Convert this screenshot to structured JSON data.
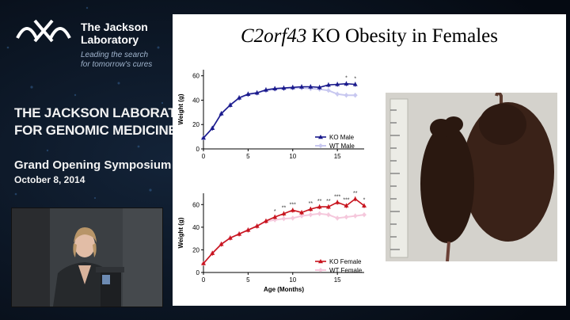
{
  "branding": {
    "org_line1": "The Jackson",
    "org_line2": "Laboratory",
    "tagline_line1": "Leading the search",
    "tagline_line2": "for tomorrow's cures"
  },
  "event": {
    "title_line1": "THE JACKSON LABORATORY",
    "title_line2": "FOR GENOMIC MEDICINE",
    "subtitle": "Grand Opening Symposium",
    "date": "October 8, 2014"
  },
  "slide": {
    "title_gene": "C2orf43",
    "title_rest": " KO Obesity in Females"
  },
  "chart_data": [
    {
      "type": "line",
      "title": "",
      "xlabel": "",
      "ylabel": "Weight (g)",
      "xlim": [
        0,
        18
      ],
      "ylim": [
        0,
        65
      ],
      "xticks": [
        0,
        5,
        10,
        15
      ],
      "yticks": [
        0,
        20,
        40,
        60
      ],
      "legend_position": "bottom-right",
      "colors": {
        "KO": "#1a1a8c",
        "WT": "#c8c8f0"
      },
      "series": [
        {
          "name": "KO Male",
          "marker": "triangle",
          "x": [
            0,
            1,
            2,
            3,
            4,
            5,
            6,
            7,
            8,
            9,
            10,
            11,
            12,
            13,
            14,
            15,
            16,
            17
          ],
          "values": [
            9,
            17,
            29,
            36,
            42,
            45,
            46,
            48.5,
            49.5,
            50,
            50.5,
            51,
            51,
            50.5,
            52.5,
            53,
            53.5,
            53
          ]
        },
        {
          "name": "WT Male",
          "marker": "diamond",
          "x": [
            0,
            1,
            2,
            3,
            4,
            5,
            6,
            7,
            8,
            9,
            10,
            11,
            12,
            13,
            14,
            15,
            16,
            17
          ],
          "values": [
            9,
            17,
            29,
            36,
            41.5,
            44.5,
            46,
            48,
            49,
            49.5,
            50,
            50,
            49.5,
            49,
            48,
            45,
            44,
            44
          ]
        }
      ],
      "annotations": [
        {
          "x": 16,
          "text": "*"
        },
        {
          "x": 17,
          "text": "*"
        }
      ]
    },
    {
      "type": "line",
      "title": "",
      "xlabel": "Age (Months)",
      "ylabel": "Weight (g)",
      "xlim": [
        0,
        18
      ],
      "ylim": [
        0,
        70
      ],
      "xticks": [
        0,
        5,
        10,
        15
      ],
      "yticks": [
        0,
        20,
        40,
        60
      ],
      "legend_position": "bottom-right",
      "colors": {
        "KO": "#c8141e",
        "WT": "#f5c8dc"
      },
      "series": [
        {
          "name": "KO Female",
          "marker": "triangle",
          "x": [
            0,
            1,
            2,
            3,
            4,
            5,
            6,
            7,
            8,
            9,
            10,
            11,
            12,
            13,
            14,
            15,
            16,
            17,
            18
          ],
          "values": [
            8,
            17,
            25,
            30.5,
            34,
            37.5,
            41,
            45.5,
            49,
            52,
            55,
            53,
            56,
            58,
            58,
            62,
            59,
            65,
            59
          ]
        },
        {
          "name": "WT Female",
          "marker": "diamond",
          "x": [
            0,
            1,
            2,
            3,
            4,
            5,
            6,
            7,
            8,
            9,
            10,
            11,
            12,
            13,
            14,
            15,
            16,
            17,
            18
          ],
          "values": [
            8,
            17,
            25,
            30.5,
            34,
            37.5,
            41,
            45,
            46.5,
            47.5,
            48,
            50,
            51,
            52,
            51,
            48,
            49,
            50,
            51
          ]
        }
      ],
      "annotations": [
        {
          "x": 8,
          "text": "*"
        },
        {
          "x": 9,
          "text": "**"
        },
        {
          "x": 10,
          "text": "***"
        },
        {
          "x": 12,
          "text": "**"
        },
        {
          "x": 13,
          "text": "**"
        },
        {
          "x": 14,
          "text": "**"
        },
        {
          "x": 15,
          "text": "***"
        },
        {
          "x": 16,
          "text": "***"
        },
        {
          "x": 17,
          "text": "**"
        },
        {
          "x": 18,
          "text": "*"
        }
      ]
    }
  ]
}
